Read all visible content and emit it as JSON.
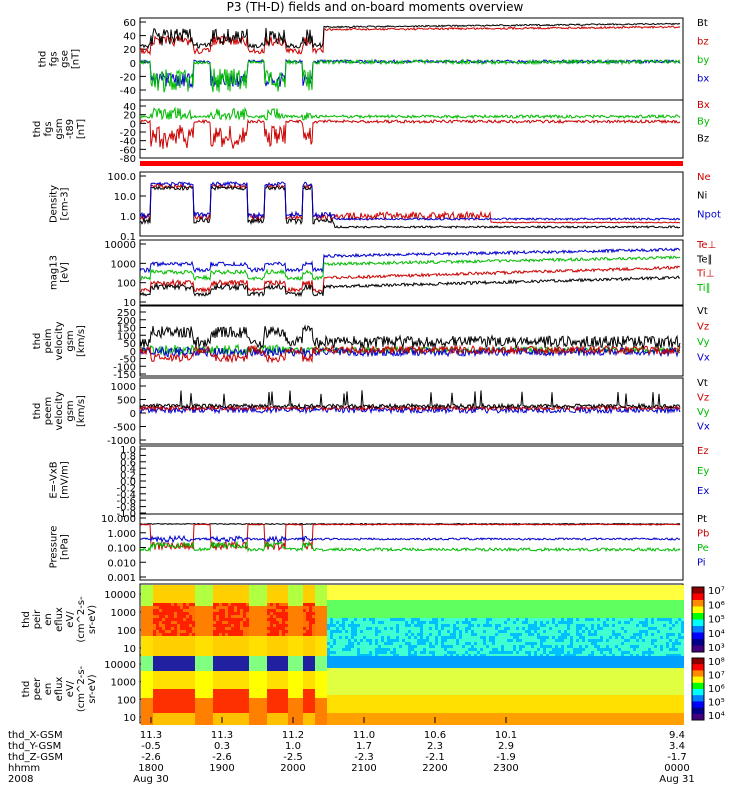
{
  "title": "P3 (TH-D) fields and on-board moments overview",
  "panels": [
    {
      "id": "fgs",
      "ylabel": [
        "thd",
        "fgs",
        "gse",
        "[nT]"
      ],
      "ticks": [
        "60",
        "40",
        "20",
        "0",
        "-20",
        "-40"
      ],
      "labels": [
        {
          "t": "Bt",
          "c": "#000000"
        },
        {
          "t": "bz",
          "c": "#cc0000"
        },
        {
          "t": "by",
          "c": "#00bb00"
        },
        {
          "t": "bx",
          "c": "#0000cc"
        }
      ]
    },
    {
      "id": "fgsm",
      "ylabel": [
        "thd",
        "fgs",
        "gsm",
        "-t89",
        "[nT]"
      ],
      "ticks": [
        "40",
        "20",
        "0",
        "-20",
        "-40",
        "-60",
        "-80"
      ],
      "labels": [
        {
          "t": "Bx",
          "c": "#cc0000"
        },
        {
          "t": "By",
          "c": "#00bb00"
        },
        {
          "t": "Bz",
          "c": "#000000"
        }
      ]
    },
    {
      "id": "density",
      "ylabel": [
        "Density",
        "[cm-3]"
      ],
      "ticks": [
        "100.0",
        "10.0",
        "1.0",
        "0.1"
      ],
      "labels": [
        {
          "t": "Ne",
          "c": "#cc0000"
        },
        {
          "t": "Ni",
          "c": "#000000"
        },
        {
          "t": "Npot",
          "c": "#0000cc"
        }
      ]
    },
    {
      "id": "temp",
      "ylabel": [
        "mag13",
        "[eV]"
      ],
      "ticks": [
        "10000",
        "1000",
        "100",
        "10"
      ],
      "labels": [
        {
          "t": "Te⊥",
          "c": "#cc0000"
        },
        {
          "t": "Te∥",
          "c": "#000000"
        },
        {
          "t": "Ti⊥",
          "c": "#cc0000"
        },
        {
          "t": "Ti∥",
          "c": "#00bb00"
        }
      ]
    },
    {
      "id": "vi",
      "ylabel": [
        "thd",
        "peim",
        "velocity",
        "gsm",
        "[km/s]"
      ],
      "ticks": [
        "250",
        "200",
        "150",
        "100",
        "50",
        "0",
        "-50",
        "-100",
        "-150"
      ],
      "labels": [
        {
          "t": "Vt",
          "c": "#000000"
        },
        {
          "t": "Vz",
          "c": "#cc0000"
        },
        {
          "t": "Vy",
          "c": "#00bb00"
        },
        {
          "t": "Vx",
          "c": "#0000cc"
        }
      ]
    },
    {
      "id": "ve",
      "ylabel": [
        "thd",
        "peem",
        "velocity",
        "gsm",
        "[km/s]"
      ],
      "ticks": [
        "1000",
        "500",
        "0",
        "-500",
        "-1000"
      ],
      "labels": [
        {
          "t": "Vt",
          "c": "#000000"
        },
        {
          "t": "Vz",
          "c": "#cc0000"
        },
        {
          "t": "Vy",
          "c": "#00bb00"
        },
        {
          "t": "Vx",
          "c": "#0000cc"
        }
      ]
    },
    {
      "id": "e",
      "ylabel": [
        "E=-VxB",
        "[mV/m]"
      ],
      "ticks": [
        "1.0",
        "0.8",
        "0.6",
        "0.4",
        "0.2",
        "0.0",
        "-0.2",
        "-0.4",
        "-0.6",
        "-0.8",
        "-1.0"
      ],
      "labels": [
        {
          "t": "Ez",
          "c": "#cc0000"
        },
        {
          "t": "Ey",
          "c": "#00bb00"
        },
        {
          "t": "Ex",
          "c": "#0000cc"
        }
      ]
    },
    {
      "id": "pressure",
      "ylabel": [
        "Pressure",
        "[nPa]"
      ],
      "ticks": [
        "10.000",
        "1.000",
        "0.100",
        "0.010",
        "0.001"
      ],
      "labels": [
        {
          "t": "Pt",
          "c": "#000000"
        },
        {
          "t": "Pb",
          "c": "#cc0000"
        },
        {
          "t": "Pe",
          "c": "#00bb00"
        },
        {
          "t": "Pi",
          "c": "#0000cc"
        }
      ]
    },
    {
      "id": "peir",
      "ylabel": [
        "thd",
        "peir",
        "en",
        "eflux",
        "eV/",
        "(cm^2-s-",
        "sr-eV)"
      ],
      "ticks": [
        "10000",
        "1000",
        "100",
        "10"
      ],
      "cbar": [
        "10⁷",
        "10⁶",
        "10⁵",
        "10⁴",
        "10³"
      ]
    },
    {
      "id": "peer",
      "ylabel": [
        "thd",
        "peer",
        "en",
        "eflux",
        "eV/",
        "(cm^2-s-",
        "sr-eV)"
      ],
      "ticks": [
        "10000",
        "1000",
        "100",
        "10"
      ],
      "cbar": [
        "10⁸",
        "10⁷",
        "10⁶",
        "10⁵",
        "10⁴"
      ]
    }
  ],
  "xaxis": {
    "rows": [
      {
        "label": "thd_X-GSM",
        "values": [
          "11.3",
          "11.3",
          "11.2",
          "11.0",
          "10.6",
          "10.1",
          "9.4"
        ]
      },
      {
        "label": "thd_Y-GSM",
        "values": [
          "-0.5",
          "0.3",
          "1.0",
          "1.7",
          "2.3",
          "2.9",
          "3.4"
        ]
      },
      {
        "label": "thd_Z-GSM",
        "values": [
          "-2.6",
          "-2.6",
          "-2.5",
          "-2.3",
          "-2.1",
          "-1.9",
          "-1.7"
        ]
      },
      {
        "label": "hhmm",
        "values": [
          "1800",
          "1900",
          "2000",
          "2100",
          "2200",
          "2300",
          "0000"
        ]
      },
      {
        "label": "2008",
        "values": [
          "Aug 30",
          "",
          "",
          "",
          "",
          "",
          "Aug 31"
        ]
      }
    ]
  },
  "chart_data": {
    "type": "line",
    "title": "P3 (TH-D) fields and on-board moments overview",
    "x_times": [
      "1800",
      "1900",
      "2000",
      "2100",
      "2200",
      "2300",
      "0000"
    ],
    "density_Ne_cm3": [
      0.8,
      40.0,
      30.0,
      0.6,
      0.5,
      0.4,
      0.4
    ],
    "density_Ni_cm3": [
      0.5,
      30.0,
      20.0,
      0.4,
      0.3,
      0.3,
      0.25
    ],
    "Bt_nT": [
      45,
      45,
      48,
      52,
      52,
      55,
      55
    ],
    "pressure_Pt_nPa": [
      1.0,
      1.0,
      1.0,
      1.0,
      1.0,
      1.0,
      1.0
    ]
  }
}
